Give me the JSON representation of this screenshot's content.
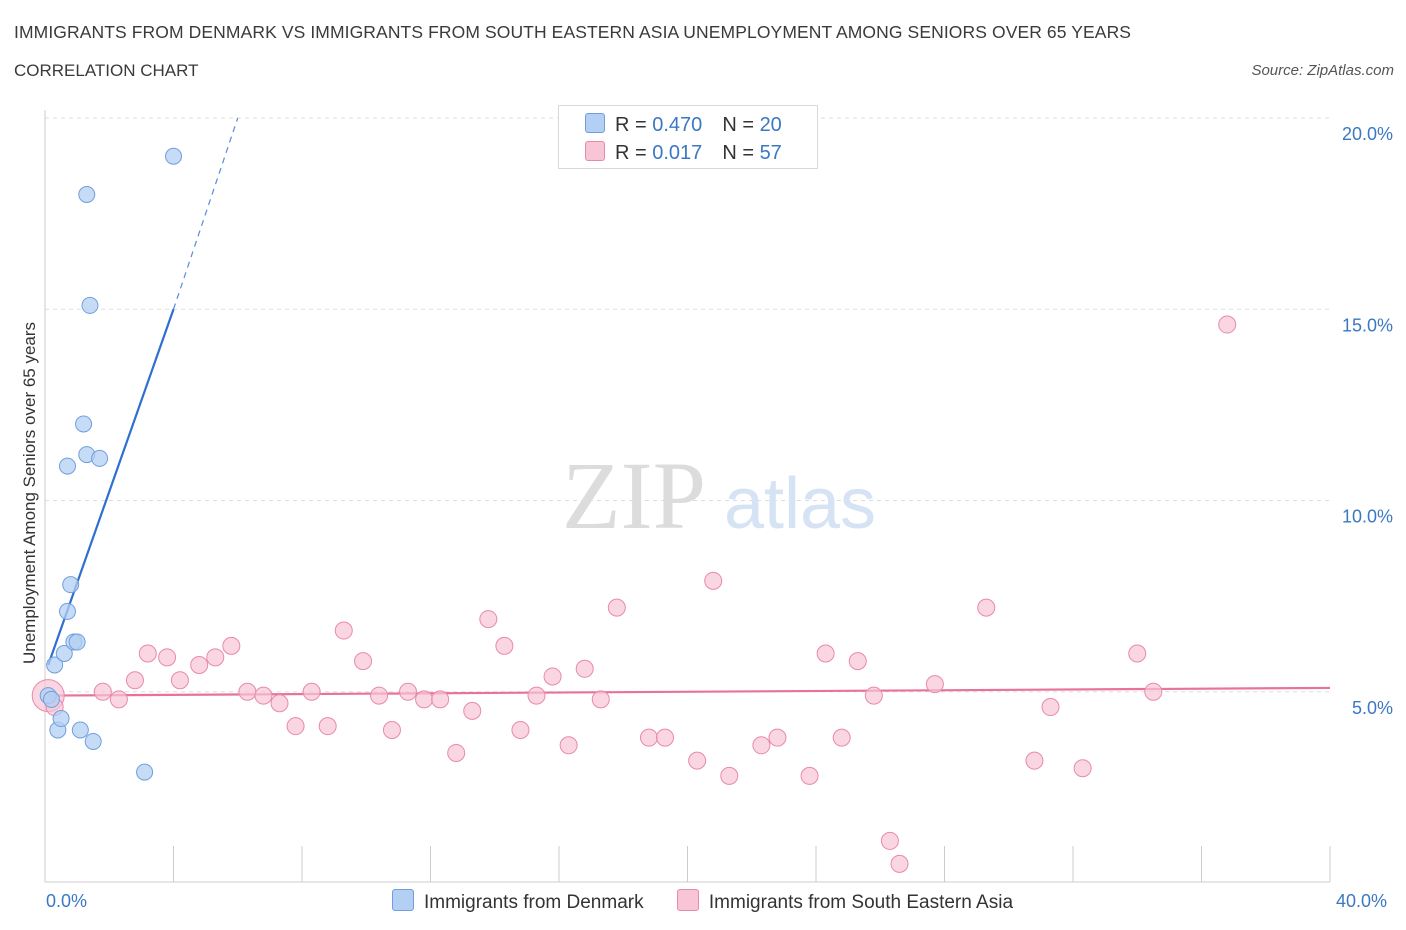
{
  "chart_data": {
    "type": "scatter",
    "title": "IMMIGRANTS FROM DENMARK VS IMMIGRANTS FROM SOUTH EASTERN ASIA UNEMPLOYMENT AMONG SENIORS OVER 65 YEARS",
    "subtitle": "CORRELATION CHART",
    "source": "Source: ZipAtlas.com",
    "ylabel": "Unemployment Among Seniors over 65 years",
    "xlabel": "",
    "xlim": [
      0,
      40
    ],
    "ylim": [
      0,
      20
    ],
    "x_tick_labels": [
      "0.0%",
      "40.0%"
    ],
    "y_ticks": [
      5,
      10,
      15,
      20
    ],
    "y_tick_labels": [
      "5.0%",
      "10.0%",
      "15.0%",
      "20.0%"
    ],
    "watermark": "ZIPatlas",
    "colors": {
      "denmark_fill": "#b3cff3",
      "denmark_stroke": "#6f9fdc",
      "denmark_line": "#2f6fcf",
      "sea_fill": "#f7c5d5",
      "sea_stroke": "#e98aa8",
      "sea_line": "#e8729a",
      "axis_label": "#3b78c3",
      "grid": "#dddddd"
    },
    "legend_stats": [
      {
        "r_label": "R = ",
        "r_value": "0.470",
        "n_label": "N = ",
        "n_value": "20"
      },
      {
        "r_label": "R = ",
        "r_value": " 0.017",
        "n_label": "N = ",
        "n_value": "57"
      }
    ],
    "series": [
      {
        "name": "Immigrants from Denmark",
        "trend": {
          "x": [
            0.1,
            4.0
          ],
          "y": [
            5.7,
            15.0
          ],
          "dashed_to": [
            6.0,
            20.0
          ]
        },
        "points": [
          [
            0.1,
            4.9
          ],
          [
            0.2,
            4.8
          ],
          [
            0.3,
            5.7
          ],
          [
            0.4,
            4.0
          ],
          [
            0.5,
            4.3
          ],
          [
            0.6,
            6.0
          ],
          [
            0.7,
            7.1
          ],
          [
            0.7,
            10.9
          ],
          [
            0.8,
            7.8
          ],
          [
            0.9,
            6.3
          ],
          [
            1.0,
            6.3
          ],
          [
            1.1,
            4.0
          ],
          [
            1.2,
            12.0
          ],
          [
            1.3,
            18.0
          ],
          [
            1.3,
            11.2
          ],
          [
            1.4,
            15.1
          ],
          [
            1.5,
            3.7
          ],
          [
            1.7,
            11.1
          ],
          [
            3.1,
            2.9
          ],
          [
            4.0,
            19.0
          ]
        ]
      },
      {
        "name": "Immigrants from South Eastern Asia",
        "trend": {
          "x": [
            0.1,
            40.0
          ],
          "y": [
            4.9,
            5.1
          ]
        },
        "points": [
          [
            0.1,
            4.9
          ],
          [
            0.3,
            4.6
          ],
          [
            1.8,
            5.0
          ],
          [
            2.3,
            4.8
          ],
          [
            2.8,
            5.3
          ],
          [
            3.2,
            6.0
          ],
          [
            3.8,
            5.9
          ],
          [
            4.2,
            5.3
          ],
          [
            4.8,
            5.7
          ],
          [
            5.3,
            5.9
          ],
          [
            5.8,
            6.2
          ],
          [
            6.3,
            5.0
          ],
          [
            6.8,
            4.9
          ],
          [
            7.3,
            4.7
          ],
          [
            7.8,
            4.1
          ],
          [
            8.3,
            5.0
          ],
          [
            8.8,
            4.1
          ],
          [
            9.3,
            6.6
          ],
          [
            9.9,
            5.8
          ],
          [
            10.4,
            4.9
          ],
          [
            10.8,
            4.0
          ],
          [
            11.3,
            5.0
          ],
          [
            11.8,
            4.8
          ],
          [
            12.3,
            4.8
          ],
          [
            12.8,
            3.4
          ],
          [
            13.3,
            4.5
          ],
          [
            13.8,
            6.9
          ],
          [
            14.3,
            6.2
          ],
          [
            14.8,
            4.0
          ],
          [
            15.3,
            4.9
          ],
          [
            15.8,
            5.4
          ],
          [
            16.3,
            3.6
          ],
          [
            16.8,
            5.6
          ],
          [
            17.3,
            4.8
          ],
          [
            17.8,
            7.2
          ],
          [
            18.8,
            3.8
          ],
          [
            19.3,
            3.8
          ],
          [
            20.3,
            3.2
          ],
          [
            20.8,
            7.9
          ],
          [
            21.3,
            2.8
          ],
          [
            22.3,
            3.6
          ],
          [
            22.8,
            3.8
          ],
          [
            23.8,
            2.8
          ],
          [
            24.3,
            6.0
          ],
          [
            24.8,
            3.8
          ],
          [
            25.3,
            5.8
          ],
          [
            25.8,
            4.9
          ],
          [
            26.3,
            1.1
          ],
          [
            26.6,
            0.5
          ],
          [
            27.7,
            5.2
          ],
          [
            29.3,
            7.2
          ],
          [
            30.8,
            3.2
          ],
          [
            31.3,
            4.6
          ],
          [
            32.3,
            3.0
          ],
          [
            34.0,
            6.0
          ],
          [
            36.8,
            14.6
          ],
          [
            34.5,
            5.0
          ]
        ]
      }
    ]
  }
}
